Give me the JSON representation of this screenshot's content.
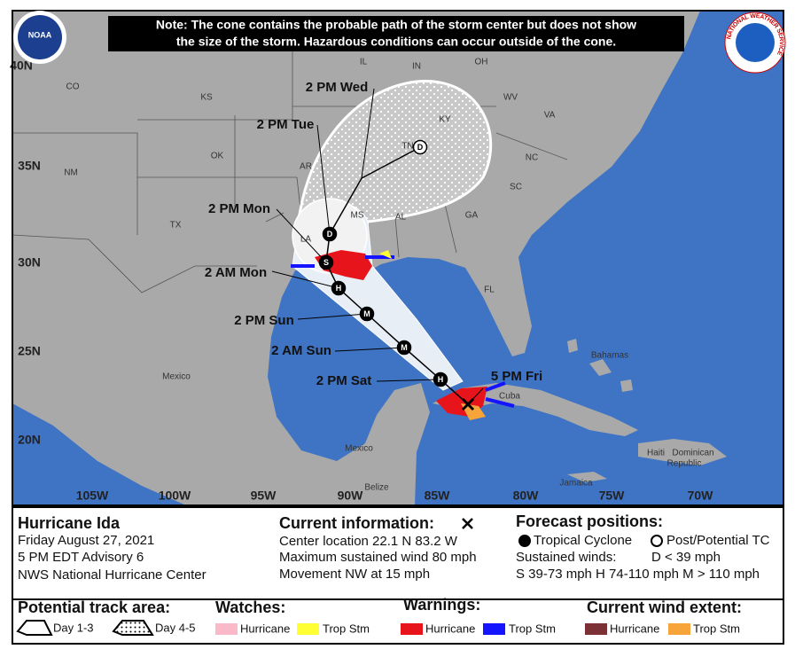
{
  "note": [
    "Note: The cone contains the probable path of the storm center but does not show",
    "the size of the storm. Hazardous conditions can occur outside of the cone."
  ],
  "logos": {
    "noaa": "NOAA",
    "nws": "NATIONAL WEATHER SERVICE"
  },
  "grid_labels": [
    "40N",
    "35N",
    "30N",
    "25N",
    "20N",
    "105W",
    "100W",
    "95W",
    "90W",
    "85W",
    "80W",
    "75W",
    "70W"
  ],
  "place_labels": [
    "CO",
    "KS",
    "OK",
    "NM",
    "TX",
    "AR",
    "LA",
    "MS",
    "AL",
    "GA",
    "TN",
    "KY",
    "IL",
    "IN",
    "OH",
    "WV",
    "VA",
    "NC",
    "SC",
    "FL",
    "Mexico",
    "Mexico",
    "Bahamas",
    "Cuba",
    "Haiti",
    "Dominican",
    "Republic",
    "Jamaica",
    "Belize"
  ],
  "forecast_points": [
    {
      "label": "5 PM Fri"
    },
    {
      "label": "2 PM Sat",
      "symbol": "H"
    },
    {
      "label": "2 AM Sun",
      "symbol": "M"
    },
    {
      "label": "2 PM Sun",
      "symbol": "M"
    },
    {
      "label": "2 AM Mon",
      "symbol": "H"
    },
    {
      "label": "2 PM Mon",
      "symbol": "S"
    },
    {
      "label": "2 PM Tue",
      "symbol": "D"
    },
    {
      "label": "2 PM Wed",
      "symbol": "D"
    }
  ],
  "info": {
    "storm": [
      "Hurricane Ida",
      "Friday August 27, 2021",
      "5 PM EDT Advisory 6",
      "NWS National Hurricane Center"
    ],
    "current": [
      "Current information:",
      "Center location 22.1 N 83.2 W",
      "Maximum sustained wind 80 mph",
      "Movement NW at 15 mph"
    ],
    "forecast": [
      "Forecast positions:",
      "Tropical Cyclone",
      "Post/Potential TC",
      "Sustained winds:",
      "D < 39 mph",
      "S 39-73 mph  H 74-110 mph  M > 110 mph"
    ]
  },
  "legend": {
    "track": {
      "title": "Potential track area:",
      "items": [
        "Day 1-3",
        "Day 4-5"
      ]
    },
    "watches": {
      "title": "Watches:",
      "items": [
        "Hurricane",
        "Trop Stm"
      ]
    },
    "warnings": {
      "title": "Warnings:",
      "items": [
        "Hurricane",
        "Trop Stm"
      ]
    },
    "wind": {
      "title": "Current wind extent:",
      "items": [
        "Hurricane",
        "Trop Stm"
      ]
    }
  }
}
